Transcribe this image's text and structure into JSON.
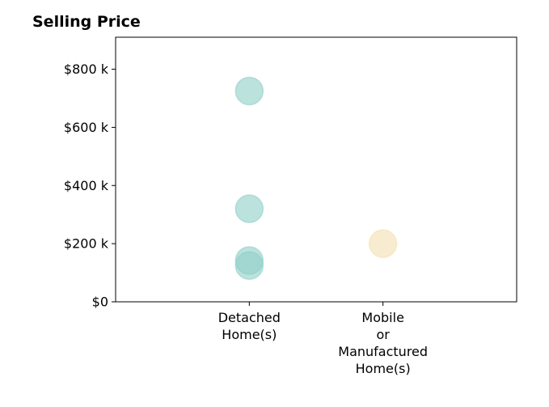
{
  "chart_data": {
    "type": "scatter",
    "title": "Selling Price",
    "xlabel": "",
    "ylabel": "",
    "categories": [
      [
        "Detached",
        "Home(s)"
      ],
      [
        "Mobile",
        "or",
        "Manufactured",
        "Home(s)"
      ]
    ],
    "xlim": [
      -1,
      2
    ],
    "ylim": [
      0,
      910000
    ],
    "y_ticks": [
      0,
      200000,
      400000,
      600000,
      800000
    ],
    "y_tick_labels": [
      "$0",
      "$200 k",
      "$400 k",
      "$600 k",
      "$800 k"
    ],
    "grid": false,
    "legend": "none",
    "series": [
      {
        "category_index": 0,
        "color": "#8fcfc8",
        "values": [
          725000,
          320000,
          142000,
          125000
        ]
      },
      {
        "category_index": 1,
        "color": "#f3dfb0",
        "values": [
          200000
        ]
      }
    ],
    "marker_opacity": 0.6
  }
}
